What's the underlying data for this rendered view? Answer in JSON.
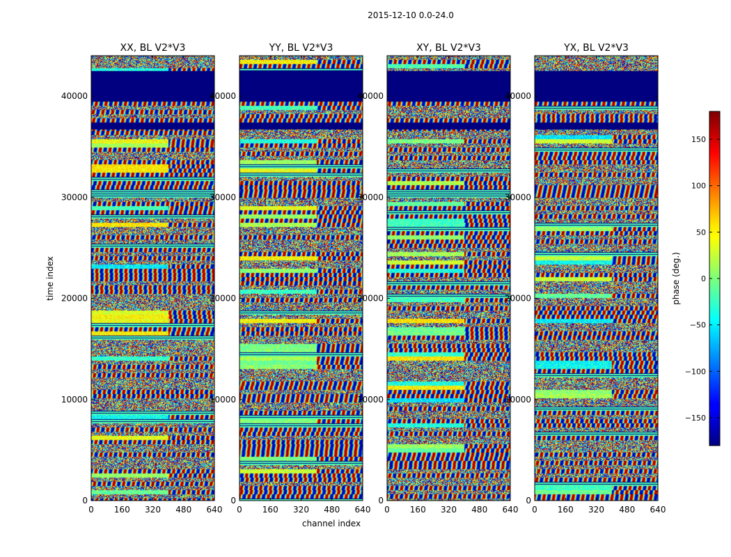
{
  "chart_data": {
    "type": "heatmap",
    "suptitle": "2015-12-10 0.0-24.0",
    "xlabel": "channel index",
    "ylabel": "time index",
    "xlim": [
      0,
      640
    ],
    "ylim": [
      0,
      44000
    ],
    "xticks": [
      0,
      160,
      320,
      480,
      640
    ],
    "yticks": [
      0,
      10000,
      20000,
      30000,
      40000
    ],
    "panels": [
      {
        "title": "XX, BL V2*V3",
        "polarization": "XX"
      },
      {
        "title": "YY, BL V2*V3",
        "polarization": "YY"
      },
      {
        "title": "XY, BL V2*V3",
        "polarization": "XY"
      },
      {
        "title": "YX, BL V2*V3",
        "polarization": "YX"
      }
    ],
    "colorbar": {
      "label": "phase (deg.)",
      "colormap": "jet",
      "range": [
        -180,
        180
      ],
      "ticks": [
        -150,
        -100,
        -50,
        0,
        50,
        100,
        150
      ],
      "tick_labels": [
        "−150",
        "−100",
        "−50",
        "0",
        "50",
        "100",
        "150"
      ]
    },
    "flagged_time_ranges": [
      [
        39500,
        42500
      ],
      [
        36800,
        37400
      ]
    ],
    "x_split_channel": 400
  }
}
